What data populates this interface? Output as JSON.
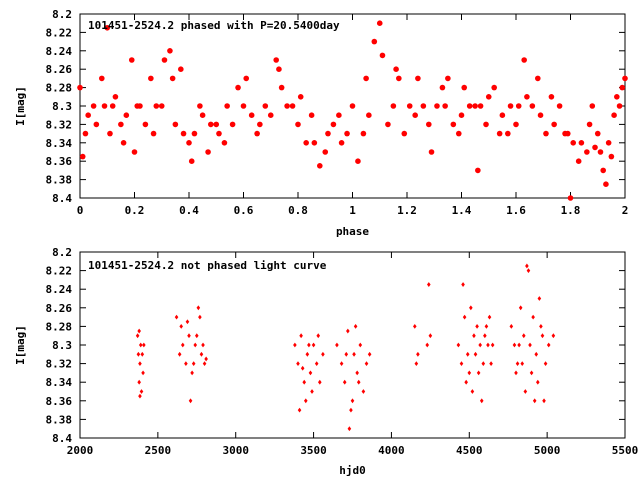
{
  "chart_data": [
    {
      "type": "scatter",
      "title": "101451-2524.2 phased with P=20.5400day",
      "xlabel": "phase",
      "ylabel": "I[mag]",
      "xlim": [
        0,
        2
      ],
      "ylim": [
        8.2,
        8.4
      ],
      "y_inverted": true,
      "x_ticks": [
        0,
        0.2,
        0.4,
        0.6,
        0.8,
        1,
        1.2,
        1.4,
        1.6,
        1.8,
        2
      ],
      "y_ticks": [
        8.2,
        8.22,
        8.24,
        8.26,
        8.28,
        8.3,
        8.32,
        8.34,
        8.36,
        8.38,
        8.4
      ],
      "x_tick_labels": [
        "0",
        "0.2",
        "0.4",
        "0.6",
        "0.8",
        "1",
        "1.2",
        "1.4",
        "1.6",
        "1.8",
        "2"
      ],
      "y_tick_labels": [
        "8.2",
        "8.22",
        "8.24",
        "8.26",
        "8.28",
        "8.3",
        "8.32",
        "8.34",
        "8.36",
        "8.38",
        "8.4"
      ],
      "color": "#ff0000",
      "marker": "filled-circle",
      "points": [
        [
          0.0,
          8.28
        ],
        [
          0.01,
          8.355
        ],
        [
          0.02,
          8.33
        ],
        [
          0.03,
          8.31
        ],
        [
          0.05,
          8.3
        ],
        [
          0.06,
          8.32
        ],
        [
          0.08,
          8.27
        ],
        [
          0.09,
          8.3
        ],
        [
          0.1,
          8.215
        ],
        [
          0.11,
          8.33
        ],
        [
          0.12,
          8.3
        ],
        [
          0.13,
          8.29
        ],
        [
          0.15,
          8.32
        ],
        [
          0.16,
          8.34
        ],
        [
          0.17,
          8.31
        ],
        [
          0.19,
          8.25
        ],
        [
          0.2,
          8.35
        ],
        [
          0.21,
          8.3
        ],
        [
          0.22,
          8.3
        ],
        [
          0.24,
          8.32
        ],
        [
          0.26,
          8.27
        ],
        [
          0.27,
          8.33
        ],
        [
          0.28,
          8.3
        ],
        [
          0.3,
          8.3
        ],
        [
          0.31,
          8.25
        ],
        [
          0.33,
          8.24
        ],
        [
          0.34,
          8.27
        ],
        [
          0.35,
          8.32
        ],
        [
          0.37,
          8.26
        ],
        [
          0.38,
          8.33
        ],
        [
          0.4,
          8.34
        ],
        [
          0.41,
          8.36
        ],
        [
          0.42,
          8.33
        ],
        [
          0.44,
          8.3
        ],
        [
          0.45,
          8.31
        ],
        [
          0.47,
          8.35
        ],
        [
          0.48,
          8.32
        ],
        [
          0.5,
          8.32
        ],
        [
          0.51,
          8.33
        ],
        [
          0.53,
          8.34
        ],
        [
          0.54,
          8.3
        ],
        [
          0.56,
          8.32
        ],
        [
          0.58,
          8.28
        ],
        [
          0.6,
          8.3
        ],
        [
          0.61,
          8.27
        ],
        [
          0.63,
          8.31
        ],
        [
          0.65,
          8.33
        ],
        [
          0.66,
          8.32
        ],
        [
          0.68,
          8.3
        ],
        [
          0.7,
          8.31
        ],
        [
          0.72,
          8.25
        ],
        [
          0.73,
          8.26
        ],
        [
          0.74,
          8.28
        ],
        [
          0.76,
          8.3
        ],
        [
          0.78,
          8.3
        ],
        [
          0.8,
          8.32
        ],
        [
          0.81,
          8.29
        ],
        [
          0.83,
          8.34
        ],
        [
          0.85,
          8.31
        ],
        [
          0.86,
          8.34
        ],
        [
          0.88,
          8.365
        ],
        [
          0.9,
          8.35
        ],
        [
          0.91,
          8.33
        ],
        [
          0.93,
          8.32
        ],
        [
          0.95,
          8.31
        ],
        [
          0.96,
          8.34
        ],
        [
          0.98,
          8.33
        ],
        [
          1.0,
          8.3
        ],
        [
          1.02,
          8.36
        ],
        [
          1.04,
          8.33
        ],
        [
          1.05,
          8.27
        ],
        [
          1.06,
          8.31
        ],
        [
          1.08,
          8.23
        ],
        [
          1.1,
          8.21
        ],
        [
          1.11,
          8.245
        ],
        [
          1.13,
          8.32
        ],
        [
          1.15,
          8.3
        ],
        [
          1.16,
          8.26
        ],
        [
          1.17,
          8.27
        ],
        [
          1.19,
          8.33
        ],
        [
          1.21,
          8.3
        ],
        [
          1.23,
          8.31
        ],
        [
          1.24,
          8.27
        ],
        [
          1.26,
          8.3
        ],
        [
          1.28,
          8.32
        ],
        [
          1.29,
          8.35
        ],
        [
          1.31,
          8.3
        ],
        [
          1.33,
          8.28
        ],
        [
          1.34,
          8.3
        ],
        [
          1.35,
          8.27
        ],
        [
          1.37,
          8.32
        ],
        [
          1.39,
          8.33
        ],
        [
          1.4,
          8.31
        ],
        [
          1.41,
          8.28
        ],
        [
          1.43,
          8.3
        ],
        [
          1.45,
          8.3
        ],
        [
          1.46,
          8.37
        ],
        [
          1.47,
          8.3
        ],
        [
          1.49,
          8.32
        ],
        [
          1.5,
          8.29
        ],
        [
          1.52,
          8.28
        ],
        [
          1.54,
          8.33
        ],
        [
          1.55,
          8.31
        ],
        [
          1.57,
          8.33
        ],
        [
          1.58,
          8.3
        ],
        [
          1.6,
          8.32
        ],
        [
          1.61,
          8.3
        ],
        [
          1.63,
          8.25
        ],
        [
          1.64,
          8.29
        ],
        [
          1.66,
          8.3
        ],
        [
          1.68,
          8.27
        ],
        [
          1.69,
          8.31
        ],
        [
          1.71,
          8.33
        ],
        [
          1.73,
          8.29
        ],
        [
          1.74,
          8.32
        ],
        [
          1.76,
          8.3
        ],
        [
          1.78,
          8.33
        ],
        [
          1.79,
          8.33
        ],
        [
          1.81,
          8.34
        ],
        [
          1.83,
          8.36
        ],
        [
          1.84,
          8.34
        ],
        [
          1.86,
          8.35
        ],
        [
          1.87,
          8.32
        ],
        [
          1.88,
          8.3
        ],
        [
          1.89,
          8.345
        ],
        [
          1.9,
          8.33
        ],
        [
          1.91,
          8.35
        ],
        [
          1.92,
          8.37
        ],
        [
          1.93,
          8.385
        ],
        [
          1.94,
          8.34
        ],
        [
          1.95,
          8.355
        ],
        [
          1.96,
          8.31
        ],
        [
          1.97,
          8.29
        ],
        [
          1.98,
          8.3
        ],
        [
          1.99,
          8.28
        ],
        [
          2.0,
          8.27
        ],
        [
          1.8,
          8.4
        ]
      ]
    },
    {
      "type": "scatter",
      "title": "101451-2524.2 not phased light curve",
      "xlabel": "hjd0",
      "ylabel": "I[mag]",
      "xlim": [
        2000,
        5500
      ],
      "ylim": [
        8.2,
        8.4
      ],
      "y_inverted": true,
      "x_ticks": [
        2000,
        2500,
        3000,
        3500,
        4000,
        4500,
        5000,
        5500
      ],
      "y_ticks": [
        8.2,
        8.22,
        8.24,
        8.26,
        8.28,
        8.3,
        8.32,
        8.34,
        8.36,
        8.38,
        8.4
      ],
      "x_tick_labels": [
        "2000",
        "2500",
        "3000",
        "3500",
        "4000",
        "4500",
        "5000",
        "5500"
      ],
      "y_tick_labels": [
        "8.2",
        "8.22",
        "8.24",
        "8.26",
        "8.28",
        "8.3",
        "8.32",
        "8.34",
        "8.36",
        "8.38",
        "8.4"
      ],
      "color": "#ff0000",
      "marker": "small-diamond",
      "points": [
        [
          2370,
          8.29
        ],
        [
          2375,
          8.31
        ],
        [
          2380,
          8.34
        ],
        [
          2385,
          8.32
        ],
        [
          2390,
          8.3
        ],
        [
          2395,
          8.35
        ],
        [
          2400,
          8.31
        ],
        [
          2405,
          8.33
        ],
        [
          2410,
          8.3
        ],
        [
          2380,
          8.285
        ],
        [
          2385,
          8.355
        ],
        [
          2620,
          8.27
        ],
        [
          2640,
          8.31
        ],
        [
          2660,
          8.3
        ],
        [
          2680,
          8.32
        ],
        [
          2700,
          8.29
        ],
        [
          2720,
          8.33
        ],
        [
          2740,
          8.3
        ],
        [
          2760,
          8.26
        ],
        [
          2780,
          8.31
        ],
        [
          2800,
          8.32
        ],
        [
          2650,
          8.28
        ],
        [
          2690,
          8.275
        ],
        [
          2710,
          8.36
        ],
        [
          2730,
          8.32
        ],
        [
          2750,
          8.29
        ],
        [
          2770,
          8.27
        ],
        [
          2790,
          8.3
        ],
        [
          2810,
          8.315
        ],
        [
          3380,
          8.3
        ],
        [
          3400,
          8.32
        ],
        [
          3420,
          8.29
        ],
        [
          3440,
          8.34
        ],
        [
          3460,
          8.31
        ],
        [
          3480,
          8.33
        ],
        [
          3500,
          8.3
        ],
        [
          3520,
          8.32
        ],
        [
          3540,
          8.34
        ],
        [
          3560,
          8.31
        ],
        [
          3410,
          8.37
        ],
        [
          3450,
          8.36
        ],
        [
          3490,
          8.35
        ],
        [
          3530,
          8.29
        ],
        [
          3470,
          8.3
        ],
        [
          3430,
          8.325
        ],
        [
          3650,
          8.3
        ],
        [
          3680,
          8.32
        ],
        [
          3700,
          8.34
        ],
        [
          3720,
          8.285
        ],
        [
          3740,
          8.37
        ],
        [
          3760,
          8.31
        ],
        [
          3780,
          8.33
        ],
        [
          3800,
          8.3
        ],
        [
          3820,
          8.35
        ],
        [
          3840,
          8.32
        ],
        [
          3860,
          8.31
        ],
        [
          3730,
          8.39
        ],
        [
          3750,
          8.36
        ],
        [
          3770,
          8.28
        ],
        [
          3790,
          8.34
        ],
        [
          3710,
          8.31
        ],
        [
          4150,
          8.28
        ],
        [
          4160,
          8.32
        ],
        [
          4170,
          8.31
        ],
        [
          4230,
          8.3
        ],
        [
          4240,
          8.235
        ],
        [
          4250,
          8.29
        ],
        [
          4430,
          8.3
        ],
        [
          4450,
          8.32
        ],
        [
          4470,
          8.27
        ],
        [
          4490,
          8.31
        ],
        [
          4510,
          8.26
        ],
        [
          4530,
          8.29
        ],
        [
          4550,
          8.28
        ],
        [
          4570,
          8.3
        ],
        [
          4590,
          8.32
        ],
        [
          4610,
          8.28
        ],
        [
          4630,
          8.27
        ],
        [
          4650,
          8.3
        ],
        [
          4460,
          8.235
        ],
        [
          4480,
          8.34
        ],
        [
          4500,
          8.33
        ],
        [
          4520,
          8.35
        ],
        [
          4540,
          8.31
        ],
        [
          4560,
          8.33
        ],
        [
          4580,
          8.36
        ],
        [
          4600,
          8.29
        ],
        [
          4620,
          8.3
        ],
        [
          4640,
          8.32
        ],
        [
          4770,
          8.28
        ],
        [
          4790,
          8.3
        ],
        [
          4810,
          8.32
        ],
        [
          4830,
          8.26
        ],
        [
          4850,
          8.29
        ],
        [
          4870,
          8.215
        ],
        [
          4890,
          8.3
        ],
        [
          4910,
          8.27
        ],
        [
          4930,
          8.31
        ],
        [
          4950,
          8.25
        ],
        [
          4970,
          8.29
        ],
        [
          4990,
          8.32
        ],
        [
          5010,
          8.3
        ],
        [
          5040,
          8.29
        ],
        [
          4860,
          8.35
        ],
        [
          4880,
          8.22
        ],
        [
          4900,
          8.33
        ],
        [
          4920,
          8.36
        ],
        [
          4940,
          8.34
        ],
        [
          4960,
          8.28
        ],
        [
          4980,
          8.36
        ],
        [
          4820,
          8.3
        ],
        [
          4800,
          8.33
        ],
        [
          4840,
          8.32
        ]
      ]
    }
  ]
}
